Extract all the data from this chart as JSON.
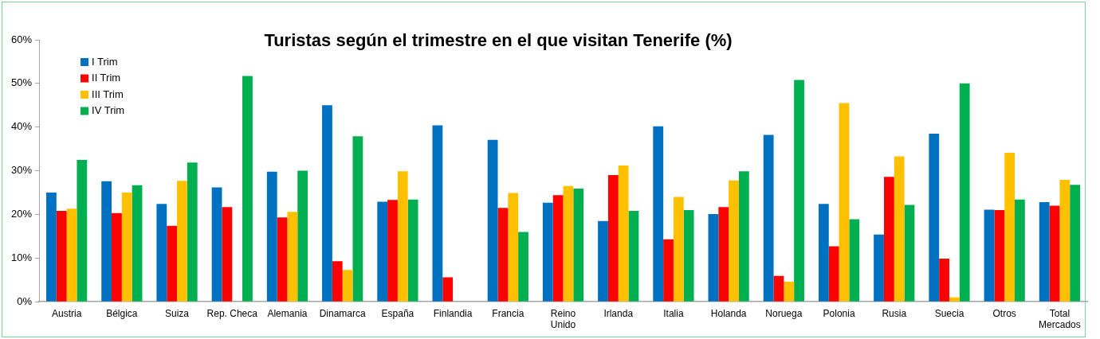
{
  "chart_data": {
    "type": "bar",
    "title": "Turistas según el trimestre en el que visitan Tenerife (%)",
    "categories": [
      "Austria",
      "Bélgica",
      "Suiza",
      "Rep. Checa",
      "Alemania",
      "Dinamarca",
      "España",
      "Finlandia",
      "Francia",
      "Reino Unido",
      "Irlanda",
      "Italia",
      "Holanda",
      "Noruega",
      "Polonia",
      "Rusia",
      "Suecia",
      "Otros",
      "Total Mercados"
    ],
    "series": [
      {
        "name": "I Trim",
        "color": "#0070c0",
        "values": [
          25.0,
          27.6,
          22.4,
          26.2,
          29.8,
          45.0,
          22.9,
          40.4,
          37.1,
          22.7,
          18.5,
          40.2,
          20.1,
          38.2,
          22.4,
          15.4,
          38.5,
          21.1,
          22.8
        ]
      },
      {
        "name": "II Trim",
        "color": "#ff0000",
        "values": [
          20.8,
          20.3,
          17.4,
          21.7,
          19.3,
          9.3,
          23.3,
          5.6,
          21.5,
          24.4,
          29.0,
          14.3,
          21.7,
          5.9,
          12.7,
          28.6,
          9.9,
          21.0,
          22.0
        ]
      },
      {
        "name": "III Trim",
        "color": "#ffc000",
        "values": [
          21.3,
          25.0,
          27.7,
          null,
          20.6,
          7.3,
          29.9,
          null,
          24.9,
          26.5,
          31.2,
          24.0,
          27.8,
          4.6,
          45.5,
          33.3,
          1.0,
          34.1,
          27.9
        ]
      },
      {
        "name": "IV Trim",
        "color": "#00b050",
        "values": [
          32.5,
          26.7,
          31.9,
          51.7,
          30.0,
          37.9,
          23.4,
          null,
          16.0,
          25.9,
          20.8,
          21.0,
          29.9,
          50.8,
          18.9,
          22.2,
          50.0,
          23.4,
          26.8
        ]
      }
    ],
    "ylim": [
      0,
      60
    ],
    "yticks": [
      {
        "value": 0,
        "label": "0%"
      },
      {
        "value": 10,
        "label": "10%"
      },
      {
        "value": 20,
        "label": "20%"
      },
      {
        "value": 30,
        "label": "30%"
      },
      {
        "value": 40,
        "label": "40%"
      },
      {
        "value": 50,
        "label": "50%"
      },
      {
        "value": 60,
        "label": "60%"
      }
    ],
    "grid": false,
    "legend": "top left"
  }
}
